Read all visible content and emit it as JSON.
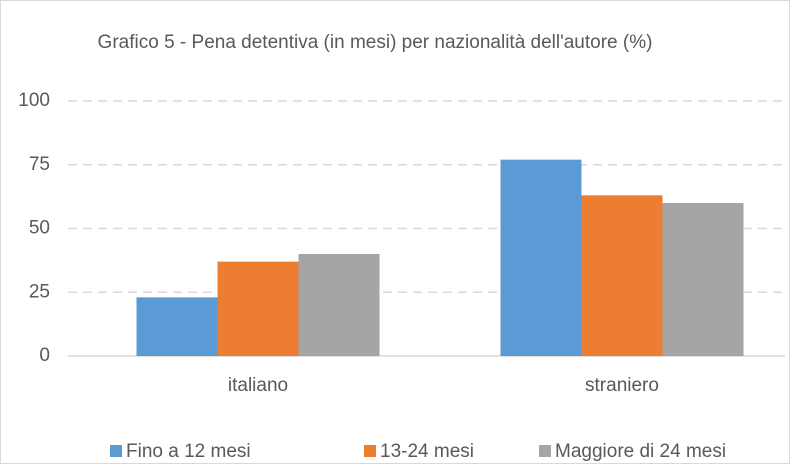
{
  "chart_data": {
    "type": "bar",
    "title": "Grafico 5 - Pena detentiva (in mesi) per nazionalità dell'autore (%)",
    "categories": [
      "italiano",
      "straniero"
    ],
    "series": [
      {
        "name": "Fino a 12 mesi",
        "color": "#5b9bd5",
        "values": [
          23,
          77
        ]
      },
      {
        "name": "13-24 mesi",
        "color": "#ed7d31",
        "values": [
          37,
          63
        ]
      },
      {
        "name": "Maggiore di 24 mesi",
        "color": "#a5a5a5",
        "values": [
          40,
          60
        ]
      }
    ],
    "ylim": [
      0,
      100
    ],
    "yticks": [
      0,
      25,
      50,
      75,
      100
    ],
    "grid": true,
    "legend": "bottom"
  }
}
